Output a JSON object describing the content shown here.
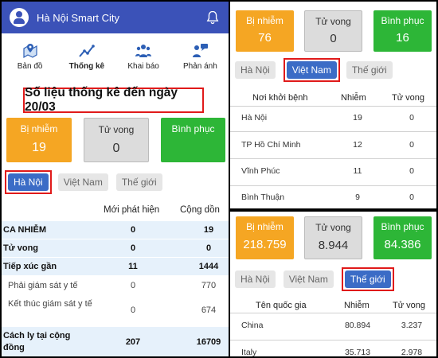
{
  "app": {
    "title": "Hà Nội Smart City"
  },
  "nav": [
    {
      "label": "Bản đồ",
      "icon": "map-pin-icon",
      "bold": false
    },
    {
      "label": "Thống kê",
      "icon": "chart-icon",
      "bold": true
    },
    {
      "label": "Khai báo",
      "icon": "people-icon",
      "bold": false
    },
    {
      "label": "Phản ánh",
      "icon": "feedback-icon",
      "bold": false
    }
  ],
  "headline": "Số liệu thống kê đến ngày 20/03",
  "left_cards": {
    "infected_label": "Bị nhiễm",
    "infected_value": "19",
    "dead_label": "Tử vong",
    "dead_value": "0",
    "recovered_label": "Bình phục",
    "recovered_value": ""
  },
  "tabs": {
    "hanoi": "Hà Nội",
    "vietnam": "Việt Nam",
    "world": "Thế giới"
  },
  "left_table": {
    "col_new": "Mới phát hiện",
    "col_total": "Cộng dồn",
    "rows": [
      {
        "name": "CA NHIỄM",
        "new": "0",
        "total": "19"
      },
      {
        "name": "Tử vong",
        "new": "0",
        "total": "0"
      },
      {
        "name": "Tiếp xúc gần",
        "new": "11",
        "total": "1444"
      },
      {
        "name": "Phải giám sát y tế",
        "new": "0",
        "total": "770"
      },
      {
        "name": "Kết thúc giám sát y tế",
        "new": "0",
        "total": "674"
      },
      {
        "name": "Cách ly tại cộng đồng",
        "new": "207",
        "total": "16709"
      }
    ]
  },
  "vn_cards": {
    "infected_label": "Bị nhiễm",
    "infected_value": "76",
    "dead_label": "Tử vong",
    "dead_value": "0",
    "recovered_label": "Bình phục",
    "recovered_value": "16"
  },
  "vn_table": {
    "col_place": "Nơi khởi bệnh",
    "col_infected": "Nhiễm",
    "col_dead": "Tử vong",
    "rows": [
      {
        "name": "Hà Nội",
        "infected": "19",
        "dead": "0"
      },
      {
        "name": "TP Hồ Chí Minh",
        "infected": "12",
        "dead": "0"
      },
      {
        "name": "Vĩnh Phúc",
        "infected": "11",
        "dead": "0"
      },
      {
        "name": "Bình Thuận",
        "infected": "9",
        "dead": "0"
      }
    ]
  },
  "world_cards": {
    "infected_label": "Bị nhiễm",
    "infected_value": "218.759",
    "dead_label": "Tử vong",
    "dead_value": "8.944",
    "recovered_label": "Bình phục",
    "recovered_value": "84.386"
  },
  "world_table": {
    "col_country": "Tên quốc gia",
    "col_infected": "Nhiễm",
    "col_dead": "Tử vong",
    "rows": [
      {
        "name": "China",
        "infected": "80.894",
        "dead": "3.237"
      },
      {
        "name": "Italy",
        "infected": "35.713",
        "dead": "2.978"
      }
    ]
  },
  "colors": {
    "appbar": "#3b52b8",
    "infected": "#f5a623",
    "recovered": "#2db637",
    "tab_active": "#3b6cc6",
    "highlight": "#e01a1a"
  }
}
